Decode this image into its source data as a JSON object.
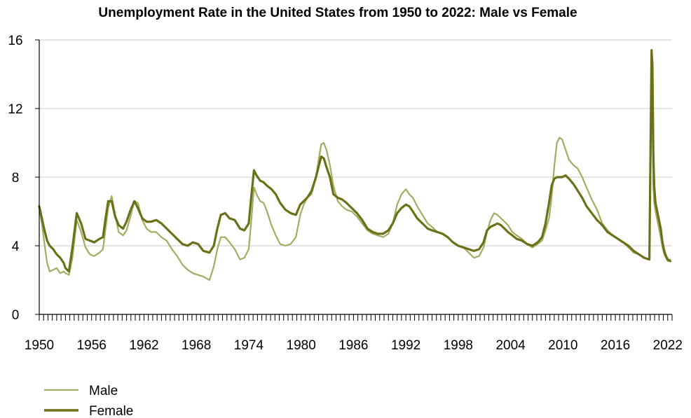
{
  "chart_data": {
    "type": "line",
    "title": "Unemployment Rate in the United States from 1950 to 2022: Male vs Female",
    "xlabel": "",
    "ylabel": "",
    "xlim": [
      1950,
      2022.5
    ],
    "ylim": [
      0,
      16
    ],
    "grid": "horizontal",
    "legend_position": "bottom-left",
    "x_tick_labels": [
      "1950",
      "1956",
      "1962",
      "1968",
      "1974",
      "1980",
      "1986",
      "1992",
      "1998",
      "2004",
      "2010",
      "2016",
      "2022"
    ],
    "y_tick_labels": [
      "0",
      "4",
      "8",
      "12",
      "16"
    ],
    "colors": {
      "Male": "#a5ab62",
      "Female": "#6b7116",
      "grid": "#c8c8c8",
      "axis": "#000000"
    },
    "series": [
      {
        "name": "Male",
        "x": [
          1950.0,
          1950.3,
          1950.6,
          1950.9,
          1951.2,
          1951.6,
          1952.0,
          1952.4,
          1952.8,
          1953.0,
          1953.4,
          1953.8,
          1954.3,
          1954.8,
          1955.3,
          1955.8,
          1956.3,
          1956.9,
          1957.3,
          1957.6,
          1957.9,
          1958.3,
          1958.7,
          1959.1,
          1959.6,
          1960.0,
          1960.4,
          1960.9,
          1961.3,
          1961.8,
          1962.3,
          1962.8,
          1963.4,
          1964.0,
          1964.6,
          1965.2,
          1965.8,
          1966.4,
          1967.0,
          1967.6,
          1968.2,
          1968.8,
          1969.5,
          1970.0,
          1970.4,
          1970.8,
          1971.3,
          1971.8,
          1972.4,
          1973.0,
          1973.5,
          1974.0,
          1974.3,
          1974.6,
          1974.9,
          1975.3,
          1975.7,
          1976.1,
          1976.6,
          1977.1,
          1977.6,
          1978.2,
          1978.8,
          1979.4,
          1979.9,
          1980.3,
          1980.7,
          1981.2,
          1981.7,
          1982.0,
          1982.3,
          1982.6,
          1982.9,
          1983.3,
          1983.7,
          1984.2,
          1984.7,
          1985.2,
          1985.8,
          1986.4,
          1987.0,
          1987.6,
          1988.2,
          1988.8,
          1989.4,
          1990.0,
          1990.5,
          1991.0,
          1991.5,
          1992.0,
          1992.4,
          1992.8,
          1993.3,
          1993.9,
          1994.5,
          1995.0,
          1995.6,
          1996.2,
          1996.8,
          1997.4,
          1998.0,
          1998.6,
          1999.2,
          1999.8,
          2000.4,
          2000.9,
          2001.3,
          2001.7,
          2002.1,
          2002.5,
          2002.9,
          2003.3,
          2003.7,
          2004.2,
          2004.7,
          2005.3,
          2005.9,
          2006.5,
          2007.1,
          2007.6,
          2008.0,
          2008.4,
          2008.7,
          2009.0,
          2009.3,
          2009.6,
          2009.9,
          2010.3,
          2010.7,
          2011.2,
          2011.7,
          2012.2,
          2012.7,
          2013.3,
          2013.9,
          2014.5,
          2015.1,
          2015.7,
          2016.3,
          2016.9,
          2017.5,
          2018.1,
          2018.7,
          2019.3,
          2019.9,
          2020.15,
          2020.25,
          2020.35,
          2020.45,
          2020.6,
          2020.8,
          2021.0,
          2021.2,
          2021.4,
          2021.6,
          2021.8,
          2022.0,
          2022.3
        ],
        "values": [
          6.2,
          5.3,
          4.1,
          3.0,
          2.5,
          2.6,
          2.7,
          2.4,
          2.5,
          2.4,
          2.3,
          3.3,
          5.5,
          4.8,
          3.9,
          3.5,
          3.4,
          3.6,
          3.8,
          5.0,
          6.2,
          6.9,
          5.8,
          4.8,
          4.6,
          4.9,
          5.6,
          6.6,
          6.5,
          5.5,
          5.0,
          4.8,
          4.8,
          4.5,
          4.3,
          3.8,
          3.4,
          2.9,
          2.6,
          2.4,
          2.3,
          2.2,
          2.0,
          2.8,
          3.8,
          4.5,
          4.5,
          4.2,
          3.8,
          3.2,
          3.3,
          3.8,
          5.5,
          7.4,
          7.0,
          6.6,
          6.5,
          6.0,
          5.2,
          4.6,
          4.1,
          4.0,
          4.1,
          4.5,
          5.8,
          6.4,
          6.8,
          7.0,
          8.0,
          9.0,
          9.9,
          10.0,
          9.6,
          8.7,
          7.5,
          6.6,
          6.3,
          6.1,
          6.0,
          5.7,
          5.3,
          4.9,
          4.7,
          4.6,
          4.5,
          4.7,
          5.3,
          6.4,
          7.0,
          7.3,
          7.0,
          6.8,
          6.3,
          5.8,
          5.3,
          5.1,
          4.8,
          4.7,
          4.5,
          4.2,
          4.0,
          3.9,
          3.6,
          3.3,
          3.4,
          3.9,
          4.8,
          5.5,
          5.9,
          5.8,
          5.6,
          5.4,
          5.2,
          4.8,
          4.6,
          4.4,
          4.1,
          3.9,
          4.1,
          4.3,
          4.9,
          5.6,
          6.8,
          8.6,
          10.0,
          10.3,
          10.2,
          9.6,
          9.0,
          8.7,
          8.5,
          8.0,
          7.4,
          6.7,
          6.1,
          5.3,
          4.9,
          4.6,
          4.4,
          4.2,
          3.9,
          3.6,
          3.5,
          3.3,
          3.2,
          13.5,
          11.0,
          7.5,
          6.5,
          6.0,
          5.5,
          5.0,
          4.5,
          3.9,
          3.5,
          3.3,
          3.1,
          3.2
        ]
      },
      {
        "name": "Female",
        "x": [
          1950.0,
          1950.3,
          1950.6,
          1950.9,
          1951.2,
          1951.6,
          1952.0,
          1952.4,
          1952.8,
          1953.0,
          1953.4,
          1953.8,
          1954.3,
          1954.8,
          1955.3,
          1955.8,
          1956.3,
          1956.9,
          1957.3,
          1957.6,
          1957.9,
          1958.3,
          1958.7,
          1959.1,
          1959.6,
          1960.0,
          1960.4,
          1960.9,
          1961.3,
          1961.8,
          1962.3,
          1962.8,
          1963.4,
          1964.0,
          1964.6,
          1965.2,
          1965.8,
          1966.4,
          1967.0,
          1967.6,
          1968.2,
          1968.8,
          1969.5,
          1970.0,
          1970.4,
          1970.8,
          1971.3,
          1971.8,
          1972.4,
          1973.0,
          1973.5,
          1974.0,
          1974.3,
          1974.6,
          1974.9,
          1975.3,
          1975.7,
          1976.1,
          1976.6,
          1977.1,
          1977.6,
          1978.2,
          1978.8,
          1979.4,
          1979.9,
          1980.3,
          1980.7,
          1981.2,
          1981.7,
          1982.0,
          1982.3,
          1982.6,
          1982.9,
          1983.3,
          1983.7,
          1984.2,
          1984.7,
          1985.2,
          1985.8,
          1986.4,
          1987.0,
          1987.6,
          1988.2,
          1988.8,
          1989.4,
          1990.0,
          1990.5,
          1991.0,
          1991.5,
          1992.0,
          1992.4,
          1992.8,
          1993.3,
          1993.9,
          1994.5,
          1995.0,
          1995.6,
          1996.2,
          1996.8,
          1997.4,
          1998.0,
          1998.6,
          1999.2,
          1999.8,
          2000.4,
          2000.9,
          2001.3,
          2001.7,
          2002.1,
          2002.5,
          2002.9,
          2003.3,
          2003.7,
          2004.2,
          2004.7,
          2005.3,
          2005.9,
          2006.5,
          2007.1,
          2007.6,
          2008.0,
          2008.4,
          2008.7,
          2009.0,
          2009.3,
          2009.6,
          2009.9,
          2010.3,
          2010.7,
          2011.2,
          2011.7,
          2012.2,
          2012.7,
          2013.3,
          2013.9,
          2014.5,
          2015.1,
          2015.7,
          2016.3,
          2016.9,
          2017.5,
          2018.1,
          2018.7,
          2019.3,
          2019.9,
          2020.15,
          2020.25,
          2020.35,
          2020.45,
          2020.6,
          2020.8,
          2021.0,
          2021.2,
          2021.4,
          2021.6,
          2021.8,
          2022.0,
          2022.3
        ],
        "values": [
          6.3,
          5.6,
          4.9,
          4.3,
          4.0,
          3.8,
          3.5,
          3.3,
          3.0,
          2.7,
          2.5,
          3.9,
          5.9,
          5.3,
          4.4,
          4.3,
          4.2,
          4.4,
          4.5,
          5.6,
          6.6,
          6.6,
          5.7,
          5.2,
          5.0,
          5.4,
          6.0,
          6.6,
          6.2,
          5.6,
          5.4,
          5.4,
          5.5,
          5.3,
          5.0,
          4.7,
          4.4,
          4.1,
          4.0,
          4.2,
          4.1,
          3.7,
          3.6,
          4.0,
          5.0,
          5.8,
          5.9,
          5.6,
          5.5,
          5.0,
          4.9,
          5.3,
          6.9,
          8.4,
          8.1,
          7.8,
          7.7,
          7.5,
          7.3,
          7.0,
          6.5,
          6.1,
          5.9,
          5.8,
          6.4,
          6.6,
          6.8,
          7.2,
          8.0,
          8.6,
          9.2,
          9.1,
          8.6,
          8.0,
          7.0,
          6.8,
          6.7,
          6.5,
          6.2,
          5.9,
          5.5,
          5.0,
          4.8,
          4.7,
          4.7,
          4.9,
          5.3,
          5.9,
          6.2,
          6.4,
          6.3,
          6.0,
          5.6,
          5.3,
          5.0,
          4.9,
          4.8,
          4.7,
          4.5,
          4.2,
          4.0,
          3.9,
          3.8,
          3.7,
          3.8,
          4.2,
          4.9,
          5.1,
          5.2,
          5.3,
          5.2,
          5.0,
          4.8,
          4.6,
          4.4,
          4.3,
          4.1,
          4.0,
          4.2,
          4.5,
          5.3,
          6.5,
          7.5,
          7.9,
          8.0,
          8.0,
          8.0,
          8.1,
          7.9,
          7.6,
          7.2,
          6.8,
          6.3,
          5.9,
          5.5,
          5.2,
          4.8,
          4.6,
          4.4,
          4.2,
          4.0,
          3.7,
          3.5,
          3.3,
          3.2,
          15.4,
          14.5,
          9.5,
          7.5,
          6.5,
          6.0,
          5.5,
          5.0,
          4.2,
          3.7,
          3.4,
          3.2,
          3.1
        ]
      }
    ]
  }
}
